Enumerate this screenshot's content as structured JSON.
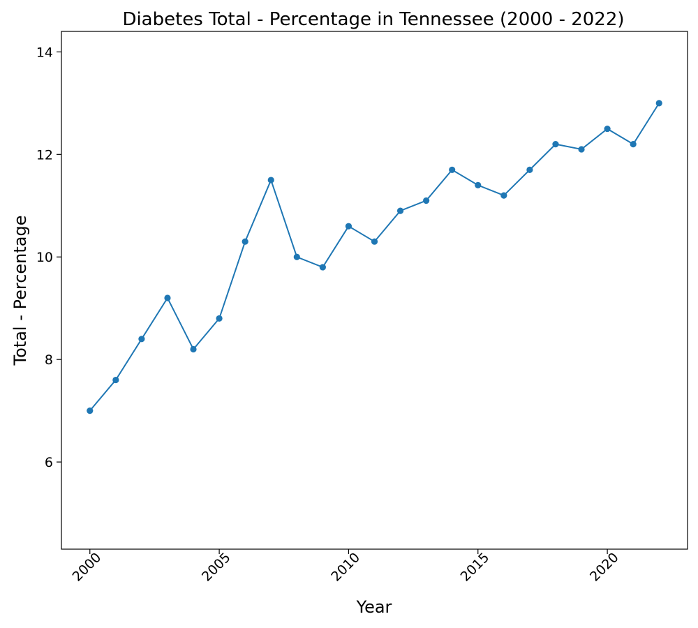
{
  "chart_data": {
    "type": "line",
    "title": "Diabetes Total - Percentage in Tennessee (2000 - 2022)",
    "xlabel": "Year",
    "ylabel": "Total - Percentage",
    "xlim": [
      1998.9,
      2023.1
    ],
    "ylim": [
      4.3,
      14.4
    ],
    "xticks": [
      2000,
      2005,
      2010,
      2015,
      2020
    ],
    "yticks": [
      6,
      8,
      10,
      12,
      14
    ],
    "grid": false,
    "legend": "none",
    "color": "#1f77b4",
    "series": [
      {
        "x": [
          2000,
          2001,
          2002,
          2003,
          2004,
          2005,
          2006,
          2007,
          2008,
          2009,
          2010,
          2011,
          2012,
          2013,
          2014,
          2015,
          2016,
          2017,
          2018,
          2019,
          2020,
          2021,
          2022
        ],
        "values": [
          7.0,
          7.6,
          8.4,
          9.2,
          8.2,
          8.8,
          10.3,
          11.5,
          10.0,
          9.8,
          10.6,
          10.3,
          10.9,
          11.1,
          11.7,
          11.4,
          11.2,
          11.7,
          12.2,
          12.1,
          12.5,
          12.2,
          13.0
        ]
      }
    ]
  }
}
